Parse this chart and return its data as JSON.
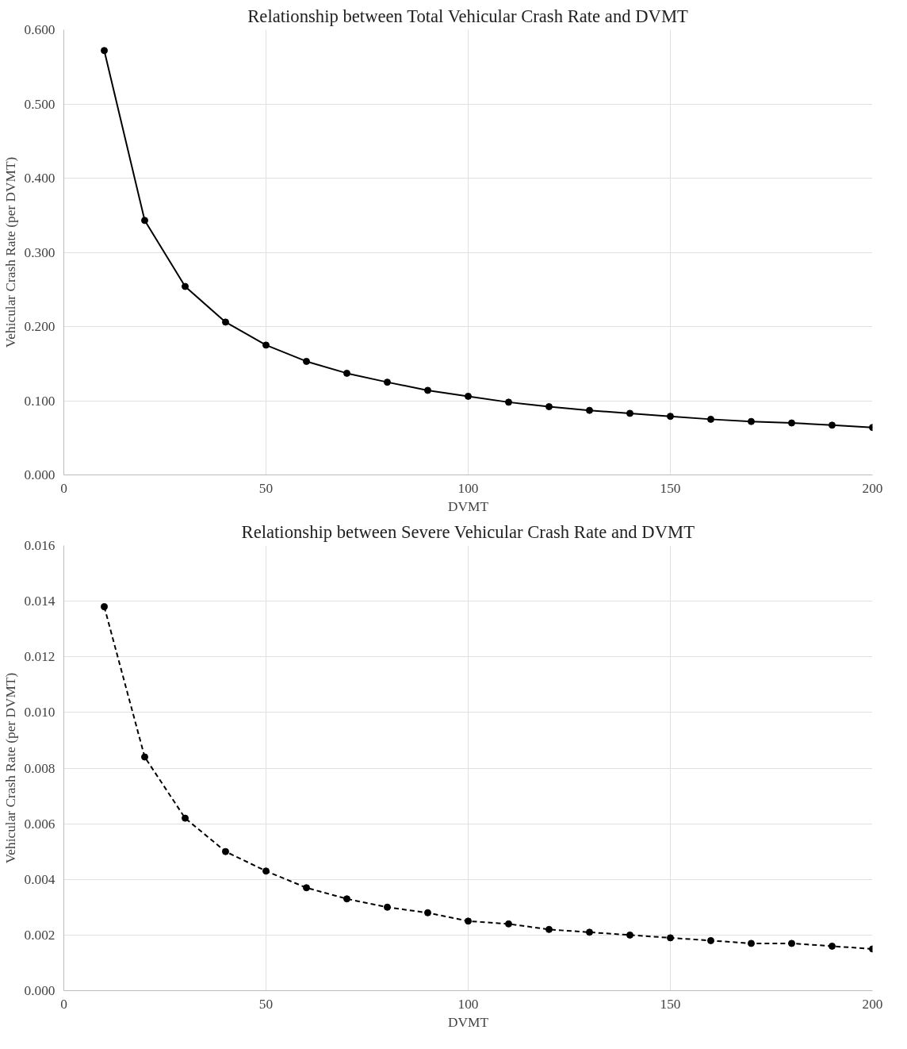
{
  "chart_data": [
    {
      "type": "line",
      "title": "Relationship between Total Vehicular Crash Rate and DVMT",
      "xlabel": "DVMT",
      "ylabel": "Vehicular Crash Rate (per DVMT)",
      "xlim": [
        0,
        200
      ],
      "xticks": [
        0,
        50,
        100,
        150,
        200
      ],
      "ylim": [
        0,
        0.6
      ],
      "yticks": [
        {
          "value": 0,
          "label": "0.000"
        },
        {
          "value": 0.1,
          "label": "0.100"
        },
        {
          "value": 0.2,
          "label": "0.200"
        },
        {
          "value": 0.3,
          "label": "0.300"
        },
        {
          "value": 0.4,
          "label": "0.400"
        },
        {
          "value": 0.5,
          "label": "0.500"
        },
        {
          "value": 0.6,
          "label": "0.600"
        }
      ],
      "grid": true,
      "marker": "circle",
      "line_style": "solid",
      "x": [
        10,
        20,
        30,
        40,
        50,
        60,
        70,
        80,
        90,
        100,
        110,
        120,
        130,
        140,
        150,
        160,
        170,
        180,
        190,
        200
      ],
      "series": [
        {
          "color": "#000000",
          "values": [
            0.572,
            0.343,
            0.254,
            0.206,
            0.175,
            0.153,
            0.137,
            0.125,
            0.114,
            0.106,
            0.098,
            0.092,
            0.087,
            0.083,
            0.079,
            0.075,
            0.072,
            0.07,
            0.067,
            0.064
          ]
        }
      ]
    },
    {
      "type": "line",
      "title": "Relationship between Severe Vehicular Crash Rate and DVMT",
      "xlabel": "DVMT",
      "ylabel": "Vehicular Crash Rate (per DVMT)",
      "xlim": [
        0,
        200
      ],
      "xticks": [
        0,
        50,
        100,
        150,
        200
      ],
      "ylim": [
        0,
        0.016
      ],
      "yticks": [
        {
          "value": 0,
          "label": "0.000"
        },
        {
          "value": 0.002,
          "label": "0.002"
        },
        {
          "value": 0.004,
          "label": "0.004"
        },
        {
          "value": 0.006,
          "label": "0.006"
        },
        {
          "value": 0.008,
          "label": "0.008"
        },
        {
          "value": 0.01,
          "label": "0.010"
        },
        {
          "value": 0.012,
          "label": "0.012"
        },
        {
          "value": 0.014,
          "label": "0.014"
        },
        {
          "value": 0.016,
          "label": "0.016"
        }
      ],
      "grid": true,
      "marker": "circle",
      "line_style": "dashed",
      "x": [
        10,
        20,
        30,
        40,
        50,
        60,
        70,
        80,
        90,
        100,
        110,
        120,
        130,
        140,
        150,
        160,
        170,
        180,
        190,
        200
      ],
      "series": [
        {
          "color": "#000000",
          "values": [
            0.0138,
            0.0084,
            0.0062,
            0.005,
            0.0043,
            0.0037,
            0.0033,
            0.003,
            0.0028,
            0.0025,
            0.0024,
            0.0022,
            0.0021,
            0.002,
            0.0019,
            0.0018,
            0.0017,
            0.0017,
            0.0016,
            0.0015
          ]
        }
      ]
    }
  ]
}
